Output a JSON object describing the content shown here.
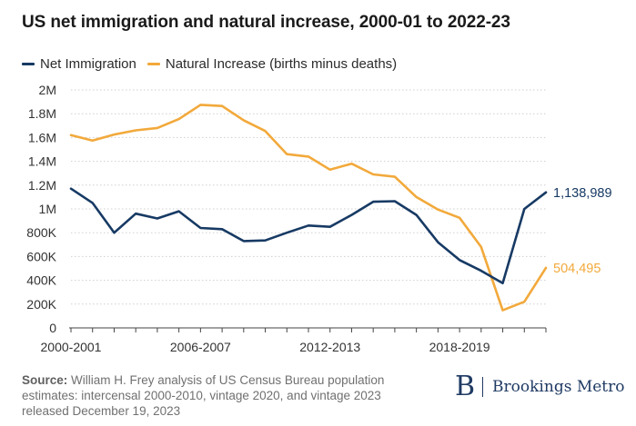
{
  "title": "US net immigration and natural increase, 2000-01 to 2022-23",
  "legend": [
    {
      "label": "Net Immigration",
      "color": "#173a64"
    },
    {
      "label": "Natural Increase (births minus deaths)",
      "color": "#f2a93b"
    }
  ],
  "chart_data": {
    "type": "line",
    "title": "US net immigration and natural increase, 2000-01 to 2022-23",
    "xlabel": "",
    "ylabel": "",
    "ylim": [
      0,
      2000000
    ],
    "grid": true,
    "legend_position": "top-left",
    "yticks": [
      0,
      200000,
      400000,
      600000,
      800000,
      1000000,
      1200000,
      1400000,
      1600000,
      1800000,
      2000000
    ],
    "ytick_labels": [
      "0",
      "200K",
      "400K",
      "600K",
      "800K",
      "1M",
      "1.2M",
      "1.4M",
      "1.6M",
      "1.8M",
      "2M"
    ],
    "x": [
      "2000-2001",
      "2001-2002",
      "2002-2003",
      "2003-2004",
      "2004-2005",
      "2005-2006",
      "2006-2007",
      "2007-2008",
      "2008-2009",
      "2009-2010",
      "2010-2011",
      "2011-2012",
      "2012-2013",
      "2013-2014",
      "2014-2015",
      "2015-2016",
      "2016-2017",
      "2017-2018",
      "2018-2019",
      "2019-2020",
      "2020-2021",
      "2021-2022",
      "2022-2023"
    ],
    "xtick_labels": [
      "2000-2001",
      "2006-2007",
      "2012-2013",
      "2018-2019"
    ],
    "series": [
      {
        "name": "Net Immigration",
        "color": "#173a64",
        "values": [
          1170000,
          1050000,
          800000,
          960000,
          920000,
          980000,
          840000,
          830000,
          730000,
          735000,
          800000,
          860000,
          850000,
          950000,
          1060000,
          1065000,
          950000,
          720000,
          570000,
          480000,
          376000,
          1000000,
          1138989
        ],
        "end_label": "1,138,989"
      },
      {
        "name": "Natural Increase (births minus deaths)",
        "color": "#f2a93b",
        "values": [
          1620000,
          1575000,
          1625000,
          1660000,
          1680000,
          1755000,
          1875000,
          1865000,
          1745000,
          1655000,
          1460000,
          1440000,
          1330000,
          1380000,
          1290000,
          1270000,
          1100000,
          995000,
          925000,
          680000,
          148000,
          220000,
          504495
        ],
        "end_label": "504,495"
      }
    ]
  },
  "source": {
    "label": "Source:",
    "text": "William H. Frey analysis of US Census Bureau population estimates: intercensal 2000-2010, vintage 2020, and vintage 2023 released December 19, 2023"
  },
  "brand": {
    "mark": "B",
    "name": "Brookings Metro",
    "color": "#1f3a63"
  }
}
